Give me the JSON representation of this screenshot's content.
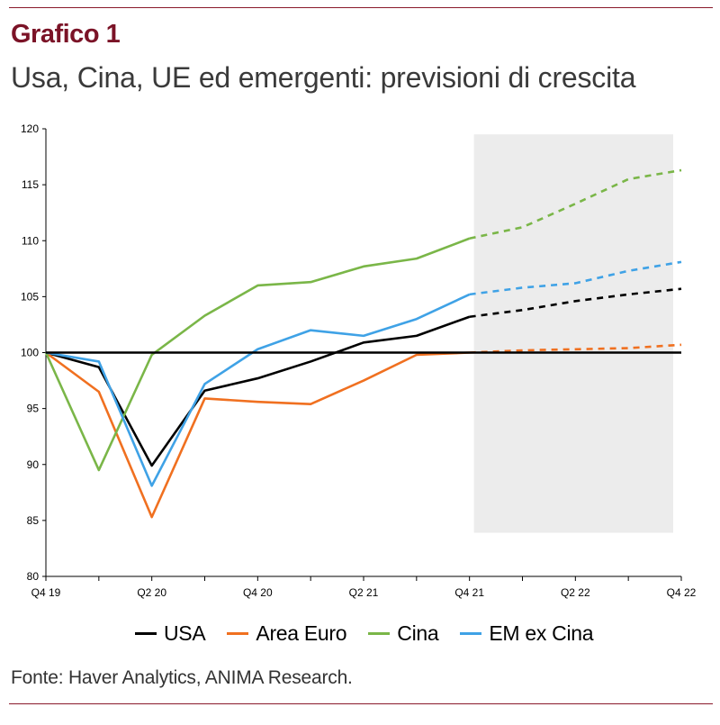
{
  "header": {
    "title": "Grafico 1",
    "subtitle": "Usa, Cina, UE ed emergenti: previsioni di crescita"
  },
  "footer": {
    "source": "Fonte: Haver Analytics, ANIMA Research."
  },
  "colors": {
    "accent": "#7b1327",
    "rule": "#8a1a2c",
    "forecast_band": "#ececec",
    "axis": "#000000"
  },
  "chart_data": {
    "type": "line",
    "x": [
      "Q4 19",
      "Q1 20",
      "Q2 20",
      "Q3 20",
      "Q4 20",
      "Q1 21",
      "Q2 21",
      "Q3 21",
      "Q4 21",
      "Q1 22",
      "Q2 22",
      "Q3 22",
      "Q4 22"
    ],
    "x_tick_labels": [
      "Q4 19",
      "",
      "Q2 20",
      "",
      "Q4 20",
      "",
      "Q2 21",
      "",
      "Q4 21",
      "",
      "Q2 22",
      "",
      "Q4 22"
    ],
    "forecast_start_index": 8,
    "forecast_band": [
      "Q4 21",
      "Q4 22"
    ],
    "ylim": [
      80,
      120
    ],
    "yticks": [
      80,
      85,
      90,
      95,
      100,
      105,
      110,
      115,
      120
    ],
    "reference_line": 100,
    "grid": false,
    "legend_position": "bottom",
    "series": [
      {
        "name": "USA",
        "color": "#000000",
        "values": [
          100,
          98.7,
          89.9,
          96.6,
          97.7,
          99.2,
          100.9,
          101.5,
          103.2,
          103.8,
          104.6,
          105.2,
          105.7
        ]
      },
      {
        "name": "Area Euro",
        "color": "#f07020",
        "values": [
          100,
          96.5,
          85.3,
          95.9,
          95.6,
          95.4,
          97.5,
          99.8,
          100.0,
          100.2,
          100.3,
          100.4,
          100.7
        ]
      },
      {
        "name": "Cina",
        "color": "#7ab648",
        "values": [
          100,
          89.5,
          99.8,
          103.3,
          106.0,
          106.3,
          107.7,
          108.4,
          110.2,
          111.2,
          113.3,
          115.5,
          116.3
        ]
      },
      {
        "name": "EM ex Cina",
        "color": "#3fa2e6",
        "values": [
          100,
          99.2,
          88.1,
          97.2,
          100.3,
          102.0,
          101.5,
          103.0,
          105.2,
          105.8,
          106.2,
          107.3,
          108.1
        ]
      }
    ]
  }
}
